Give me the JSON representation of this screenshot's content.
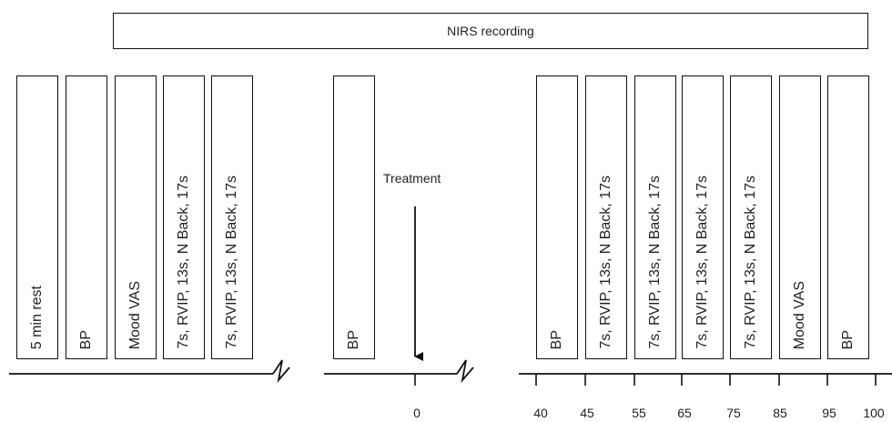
{
  "nirs_label": "NIRS recording",
  "treatment_label": "Treatment",
  "blocks_left": [
    "5 min rest",
    "BP",
    "Mood VAS",
    "7s, RVIP, 13s, N Back, 17s",
    "7s, RVIP, 13s, N Back, 17s"
  ],
  "blocks_mid": [
    "BP"
  ],
  "blocks_right": [
    "BP",
    "7s, RVIP, 13s, N Back, 17s",
    "7s, RVIP, 13s, N Back, 17s",
    "7s, RVIP, 13s, N Back, 17s",
    "7s, RVIP, 13s, N Back, 17s",
    "Mood VAS",
    "BP"
  ],
  "ticks": [
    "0",
    "40",
    "45",
    "55",
    "65",
    "75",
    "85",
    "95",
    "100"
  ]
}
